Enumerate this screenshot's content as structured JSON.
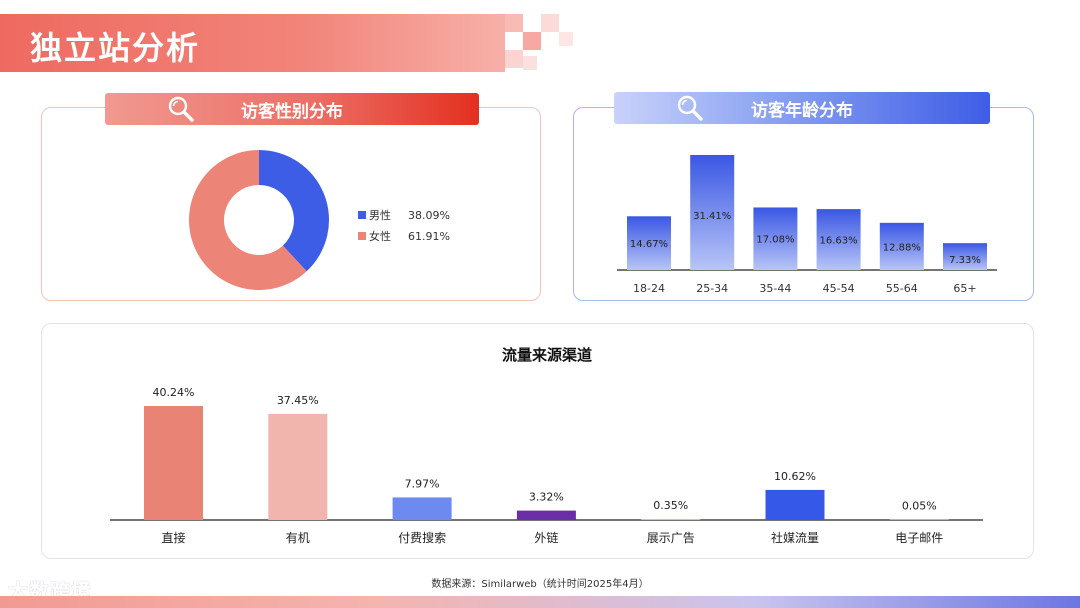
{
  "page": {
    "title": "独立站分析",
    "source": "数据来源：Similarweb（统计时间2025年4月）",
    "logo_text": "大数跨境"
  },
  "colors": {
    "red_accent": "#ec6f66",
    "blue_accent": "#3e5de6"
  },
  "gender": {
    "header": "访客性别分布",
    "icon": "search-icon"
  },
  "age": {
    "header": "访客年龄分布",
    "icon": "search-icon"
  },
  "chart_data": [
    {
      "type": "pie",
      "variant": "donut",
      "title": "访客性别分布",
      "labels": [
        "男性",
        "女性"
      ],
      "values": [
        38.09,
        61.91
      ],
      "value_labels": [
        "38.09%",
        "61.91%"
      ],
      "colors": [
        "#3e5de6",
        "#ec8478"
      ],
      "legend": "right"
    },
    {
      "type": "bar",
      "title": "访客年龄分布",
      "categories": [
        "18-24",
        "25-34",
        "35-44",
        "45-54",
        "55-64",
        "65+"
      ],
      "values": [
        14.67,
        31.41,
        17.08,
        16.63,
        12.88,
        7.33
      ],
      "value_labels": [
        "14.67%",
        "31.41%",
        "17.08%",
        "16.63%",
        "12.88%",
        "7.33%"
      ],
      "ylim": [
        0,
        32
      ],
      "grid": false
    },
    {
      "type": "bar",
      "title": "流量来源渠道",
      "categories": [
        "直接",
        "有机",
        "付费搜索",
        "外链",
        "展示广告",
        "社媒流量",
        "电子邮件"
      ],
      "values": [
        40.24,
        37.45,
        7.97,
        3.32,
        0.35,
        10.62,
        0.05
      ],
      "value_labels": [
        "40.24%",
        "37.45%",
        "7.97%",
        "3.32%",
        "0.35%",
        "10.62%",
        "0.05%"
      ],
      "colors": [
        "#e98375",
        "#f2b5ad",
        "#6d8af0",
        "#6b2ea8",
        "#f0b6ae",
        "#3558e8",
        "#9aa3d8"
      ],
      "ylim": [
        0,
        40.24
      ],
      "grid": false
    }
  ]
}
